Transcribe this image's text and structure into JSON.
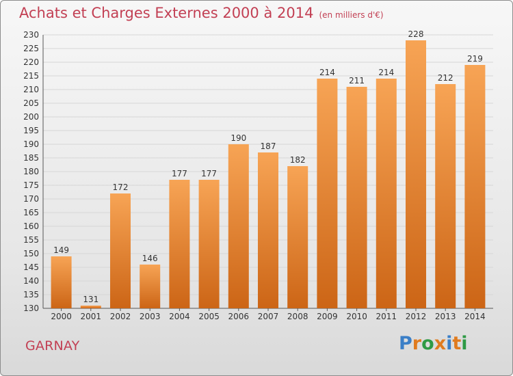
{
  "header": {
    "title": "Achats et Charges Externes 2000 à 2014",
    "subtitle": "(en milliers d'€)"
  },
  "footer": {
    "town": "GARNAY",
    "logo_text": "Proxiti"
  },
  "colors": {
    "title": "#c23f53",
    "bar_top": "#f7a455",
    "bar_bottom": "#cc6516",
    "logo_letters": [
      "#3b7fc7",
      "#e07b1f",
      "#2f9a45",
      "#e07b1f",
      "#3b7fc7",
      "#e07b1f",
      "#2f9a45"
    ]
  },
  "chart_data": {
    "type": "bar",
    "title": "Achats et Charges Externes 2000 à 2014",
    "subtitle": "(en milliers d'€)",
    "categories": [
      "2000",
      "2001",
      "2002",
      "2003",
      "2004",
      "2005",
      "2006",
      "2007",
      "2008",
      "2009",
      "2010",
      "2011",
      "2012",
      "2013",
      "2014"
    ],
    "values": [
      149,
      131,
      172,
      146,
      177,
      177,
      190,
      187,
      182,
      214,
      211,
      214,
      228,
      212,
      219
    ],
    "ylim": [
      130,
      230
    ],
    "yticks": [
      130,
      135,
      140,
      145,
      150,
      155,
      160,
      165,
      170,
      175,
      180,
      185,
      190,
      195,
      200,
      205,
      210,
      215,
      220,
      225,
      230
    ],
    "grid": true,
    "xlabel": "",
    "ylabel": ""
  }
}
